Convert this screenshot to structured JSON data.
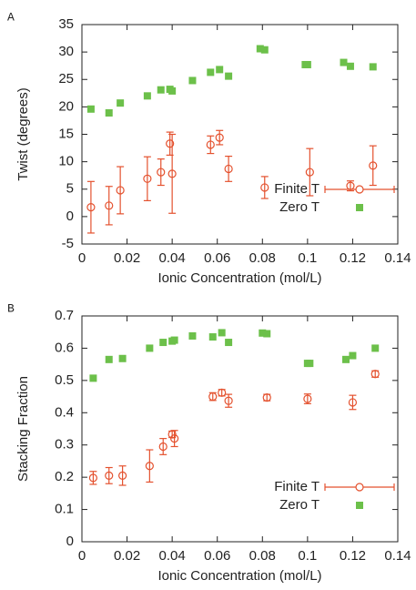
{
  "chart_data": [
    {
      "type": "scatter",
      "label": "A",
      "xlabel": "Ionic Concentration (mol/L)",
      "ylabel": "Twist (degrees)",
      "xlim": [
        0,
        0.14
      ],
      "ylim": [
        -5,
        35
      ],
      "xticks": [
        0,
        0.02,
        0.04,
        0.06,
        0.08,
        0.1,
        0.12,
        0.14
      ],
      "yticks": [
        -5,
        0,
        5,
        10,
        15,
        20,
        25,
        30,
        35
      ],
      "legend": "lower right",
      "series": [
        {
          "name": "Finite T",
          "color": "#e4512e",
          "marker": "open-circle",
          "x": [
            0.004,
            0.012,
            0.017,
            0.029,
            0.035,
            0.039,
            0.04,
            0.057,
            0.061,
            0.065,
            0.081,
            0.101,
            0.119,
            0.129
          ],
          "values": [
            1.7,
            2.0,
            4.8,
            6.9,
            8.1,
            13.3,
            7.8,
            13.1,
            14.4,
            8.7,
            5.3,
            8.1,
            5.6,
            9.3
          ],
          "errors": [
            4.7,
            3.5,
            4.3,
            4.0,
            2.4,
            2.1,
            7.2,
            1.6,
            1.3,
            2.3,
            2.0,
            4.3,
            0.9,
            3.6
          ]
        },
        {
          "name": "Zero T",
          "color": "#6cc04a",
          "marker": "square",
          "x": [
            0.004,
            0.012,
            0.017,
            0.029,
            0.035,
            0.039,
            0.04,
            0.049,
            0.057,
            0.061,
            0.065,
            0.079,
            0.081,
            0.099,
            0.1,
            0.116,
            0.119,
            0.129
          ],
          "values": [
            19.6,
            18.9,
            20.7,
            22.0,
            23.1,
            23.2,
            22.9,
            24.8,
            26.3,
            26.8,
            25.6,
            30.6,
            30.4,
            27.7,
            27.7,
            28.1,
            27.4,
            27.3
          ]
        }
      ]
    },
    {
      "type": "scatter",
      "label": "B",
      "xlabel": "Ionic Concentration (mol/L)",
      "ylabel": "Stacking Fraction",
      "xlim": [
        0,
        0.14
      ],
      "ylim": [
        0,
        0.7
      ],
      "xticks": [
        0,
        0.02,
        0.04,
        0.06,
        0.08,
        0.1,
        0.12,
        0.14
      ],
      "yticks": [
        0,
        0.1,
        0.2,
        0.3,
        0.4,
        0.5,
        0.6,
        0.7
      ],
      "legend": "lower right",
      "series": [
        {
          "name": "Finite T",
          "color": "#e4512e",
          "marker": "open-circle",
          "x": [
            0.005,
            0.012,
            0.018,
            0.03,
            0.036,
            0.04,
            0.041,
            0.058,
            0.062,
            0.065,
            0.082,
            0.1,
            0.12,
            0.13
          ],
          "values": [
            0.198,
            0.205,
            0.205,
            0.235,
            0.295,
            0.333,
            0.32,
            0.45,
            0.462,
            0.437,
            0.447,
            0.443,
            0.432,
            0.52
          ],
          "errors": [
            0.02,
            0.025,
            0.03,
            0.05,
            0.025,
            0.01,
            0.025,
            0.012,
            0.01,
            0.02,
            0.01,
            0.015,
            0.022,
            0.01
          ]
        },
        {
          "name": "Zero T",
          "color": "#6cc04a",
          "marker": "square",
          "x": [
            0.005,
            0.012,
            0.018,
            0.03,
            0.036,
            0.04,
            0.041,
            0.049,
            0.058,
            0.062,
            0.065,
            0.08,
            0.082,
            0.1,
            0.101,
            0.117,
            0.12,
            0.13
          ],
          "values": [
            0.507,
            0.565,
            0.568,
            0.6,
            0.618,
            0.622,
            0.625,
            0.638,
            0.635,
            0.648,
            0.618,
            0.647,
            0.645,
            0.553,
            0.553,
            0.565,
            0.577,
            0.6
          ]
        }
      ]
    }
  ]
}
